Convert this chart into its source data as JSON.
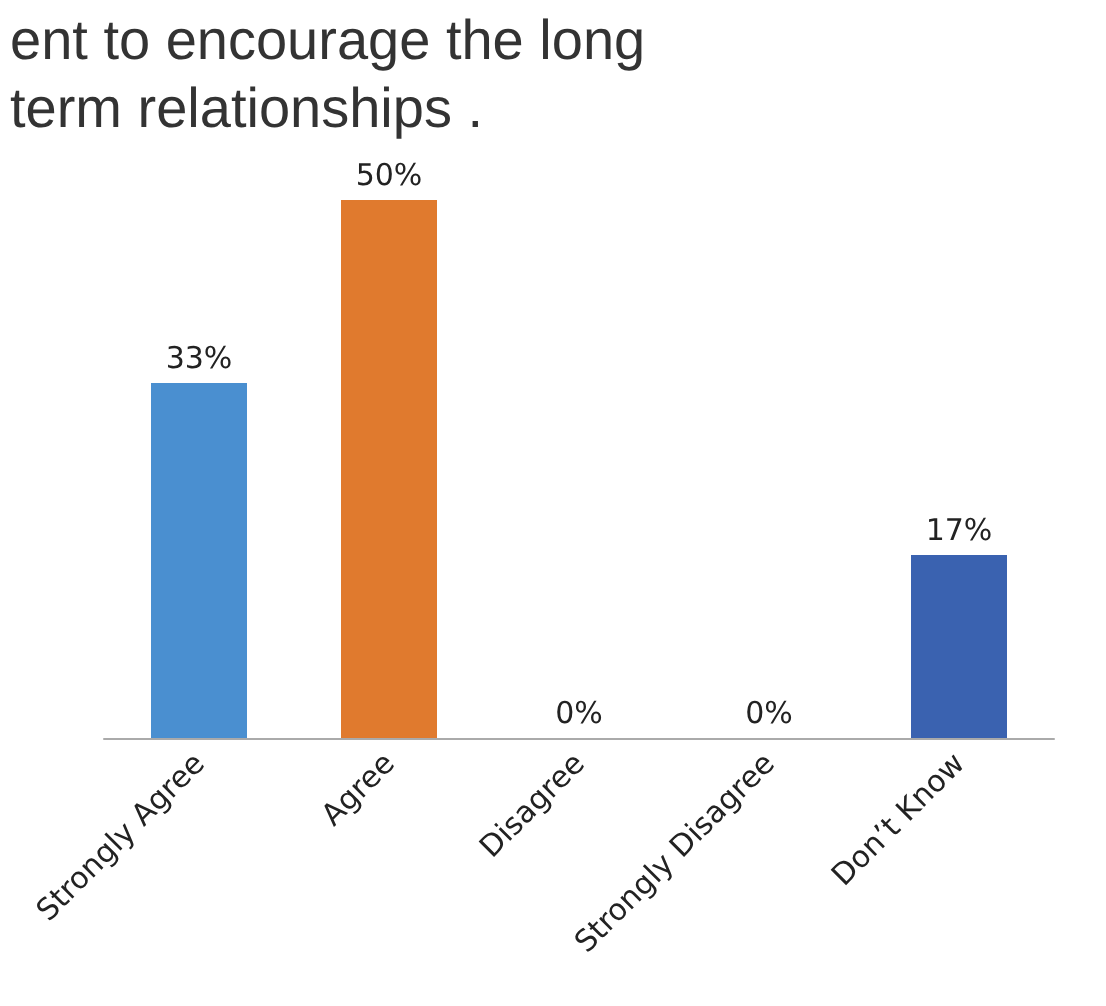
{
  "chart_data": {
    "type": "bar",
    "title": "ent to encourage the long term relationships .",
    "categories": [
      "Strongly Agree",
      "Agree",
      "Disagree",
      "Strongly Disagree",
      "Don’t Know"
    ],
    "values": [
      33,
      50,
      0,
      0,
      17
    ],
    "colors": [
      "#4a8fd0",
      "#e07a2e",
      "#a5a5a5",
      "#ffc000",
      "#3a62b0"
    ],
    "value_labels": [
      "33%",
      "50%",
      "0%",
      "0%",
      "17%"
    ]
  }
}
